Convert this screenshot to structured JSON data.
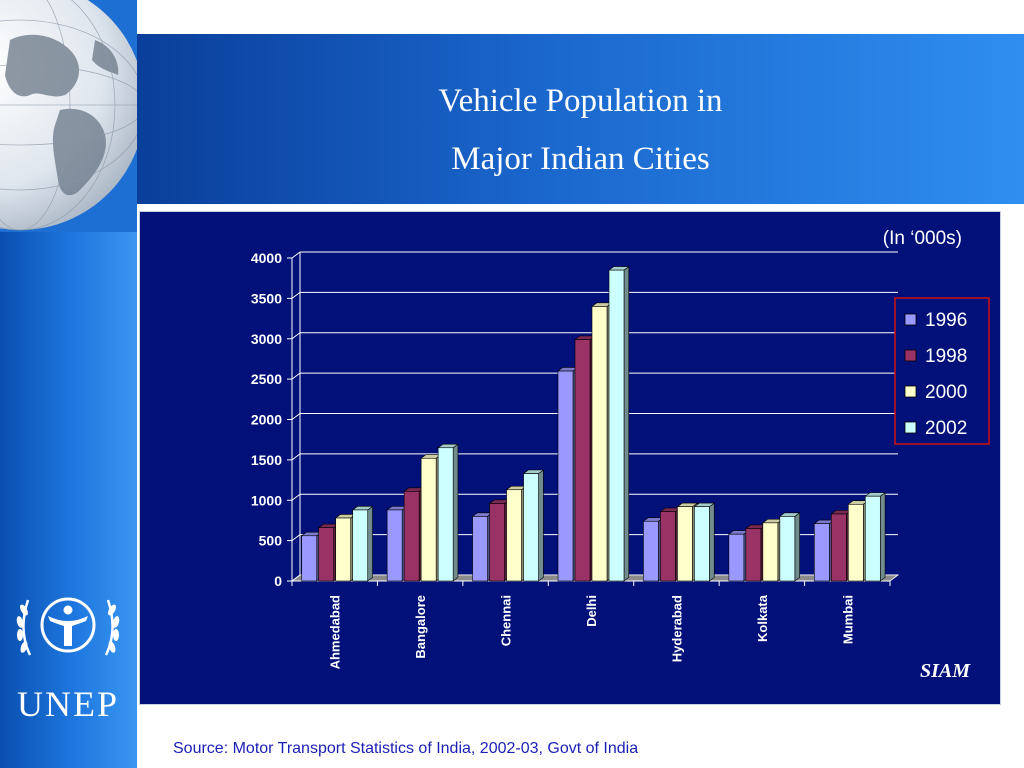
{
  "slide": {
    "title_line1": "Vehicle Population in",
    "title_line2": "Major Indian Cities",
    "source": "Source: Motor Transport Statistics of India, 2002-03, Govt of India",
    "logo_text": "UNEP"
  },
  "chart_data": {
    "type": "bar",
    "unit_note": "(In ‘000s)",
    "watermark": "SIAM",
    "categories": [
      "Ahmedabad",
      "Bangalore",
      "Chennai",
      "Delhi",
      "Hyderabad",
      "Kolkata",
      "Mumbai"
    ],
    "series": [
      {
        "name": "1996",
        "values": [
          560,
          880,
          800,
          2600,
          740,
          580,
          710
        ]
      },
      {
        "name": "1998",
        "values": [
          660,
          1110,
          960,
          2990,
          860,
          650,
          830
        ]
      },
      {
        "name": "2000",
        "values": [
          780,
          1520,
          1130,
          3400,
          920,
          720,
          950
        ]
      },
      {
        "name": "2002",
        "values": [
          880,
          1650,
          1330,
          3850,
          920,
          800,
          1050
        ]
      }
    ],
    "yticks": [
      0,
      500,
      1000,
      1500,
      2000,
      2500,
      3000,
      3500,
      4000
    ],
    "ylim": [
      0,
      4000
    ],
    "grid": true,
    "legend_position": "right",
    "colors": [
      "#9999ff",
      "#993366",
      "#ffffcc",
      "#ccffff"
    ]
  }
}
